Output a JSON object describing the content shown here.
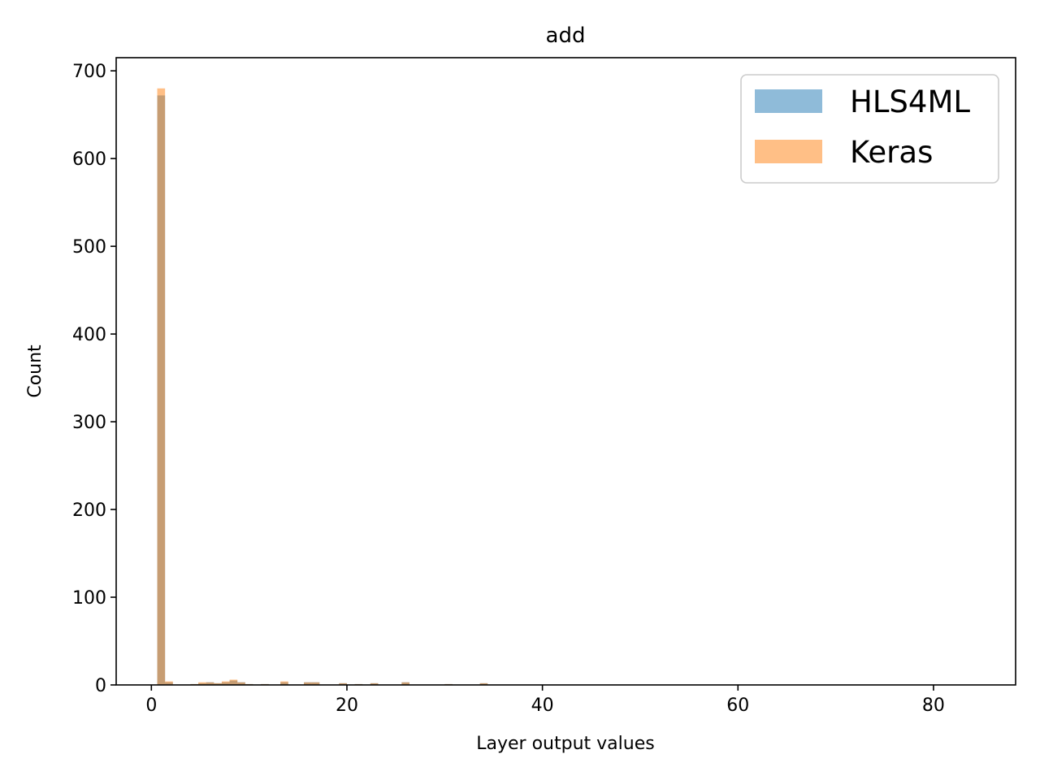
{
  "chart_data": {
    "type": "bar",
    "title": "add",
    "xlabel": "Layer output values",
    "ylabel": "Count",
    "xlim": [
      -3.6,
      88.4
    ],
    "ylim": [
      0,
      715
    ],
    "x_ticks": [
      0,
      20,
      40,
      60,
      80
    ],
    "y_ticks": [
      0,
      100,
      200,
      300,
      400,
      500,
      600,
      700
    ],
    "legend_position": "upper right",
    "series": [
      {
        "name": "HLS4ML",
        "color": "#1f77b4",
        "opacity": 0.5,
        "bins": [
          {
            "x0": 0.6,
            "x1": 1.4,
            "count": 672
          },
          {
            "x0": 1.4,
            "x1": 2.2,
            "count": 3
          },
          {
            "x0": 4.0,
            "x1": 4.8,
            "count": 1
          },
          {
            "x0": 4.8,
            "x1": 5.6,
            "count": 2
          },
          {
            "x0": 5.6,
            "x1": 6.4,
            "count": 3
          },
          {
            "x0": 6.4,
            "x1": 7.2,
            "count": 2
          },
          {
            "x0": 7.2,
            "x1": 8.0,
            "count": 3
          },
          {
            "x0": 8.0,
            "x1": 8.8,
            "count": 5
          },
          {
            "x0": 8.8,
            "x1": 9.6,
            "count": 3
          },
          {
            "x0": 9.6,
            "x1": 10.4,
            "count": 1
          },
          {
            "x0": 11.2,
            "x1": 12.0,
            "count": 1
          },
          {
            "x0": 13.2,
            "x1": 14.0,
            "count": 3
          },
          {
            "x0": 15.6,
            "x1": 16.4,
            "count": 3
          },
          {
            "x0": 16.4,
            "x1": 17.2,
            "count": 3
          },
          {
            "x0": 19.2,
            "x1": 20.0,
            "count": 2
          },
          {
            "x0": 20.8,
            "x1": 21.6,
            "count": 1
          },
          {
            "x0": 22.4,
            "x1": 23.2,
            "count": 2
          },
          {
            "x0": 25.6,
            "x1": 26.4,
            "count": 3
          },
          {
            "x0": 30.0,
            "x1": 30.8,
            "count": 1
          },
          {
            "x0": 33.6,
            "x1": 34.4,
            "count": 2
          }
        ]
      },
      {
        "name": "Keras",
        "color": "#ff7f0e",
        "opacity": 0.5,
        "bins": [
          {
            "x0": 0.6,
            "x1": 1.4,
            "count": 680
          },
          {
            "x0": 1.4,
            "x1": 2.2,
            "count": 4
          },
          {
            "x0": 4.0,
            "x1": 4.8,
            "count": 1
          },
          {
            "x0": 4.8,
            "x1": 5.6,
            "count": 3
          },
          {
            "x0": 5.6,
            "x1": 6.4,
            "count": 3
          },
          {
            "x0": 6.4,
            "x1": 7.2,
            "count": 2
          },
          {
            "x0": 7.2,
            "x1": 8.0,
            "count": 4
          },
          {
            "x0": 8.0,
            "x1": 8.8,
            "count": 6
          },
          {
            "x0": 8.8,
            "x1": 9.6,
            "count": 3
          },
          {
            "x0": 9.6,
            "x1": 10.4,
            "count": 1
          },
          {
            "x0": 11.2,
            "x1": 12.0,
            "count": 1
          },
          {
            "x0": 13.2,
            "x1": 14.0,
            "count": 4
          },
          {
            "x0": 15.6,
            "x1": 16.4,
            "count": 3
          },
          {
            "x0": 16.4,
            "x1": 17.2,
            "count": 3
          },
          {
            "x0": 19.2,
            "x1": 20.0,
            "count": 2
          },
          {
            "x0": 20.8,
            "x1": 21.6,
            "count": 1
          },
          {
            "x0": 22.4,
            "x1": 23.2,
            "count": 2
          },
          {
            "x0": 25.6,
            "x1": 26.4,
            "count": 3
          },
          {
            "x0": 30.0,
            "x1": 30.8,
            "count": 1
          },
          {
            "x0": 33.6,
            "x1": 34.4,
            "count": 2
          }
        ]
      }
    ]
  }
}
